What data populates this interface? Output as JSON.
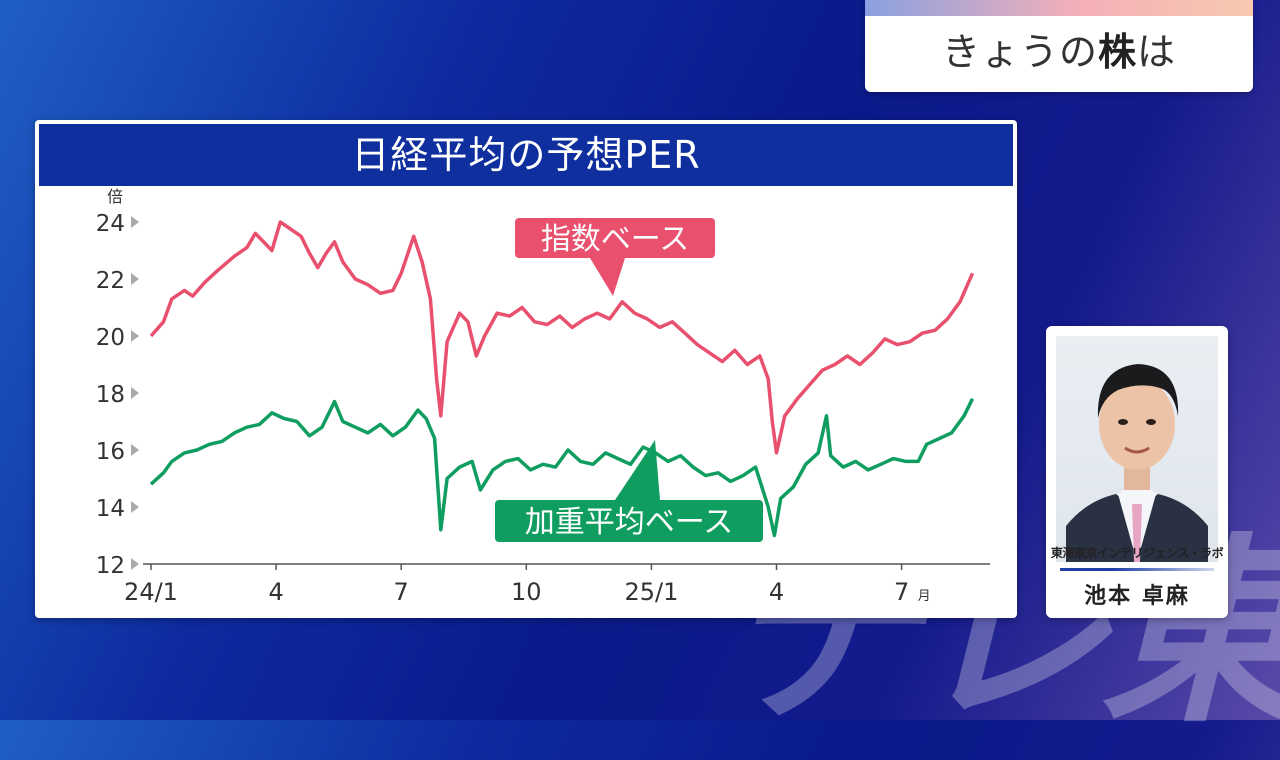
{
  "watermark": "テレ東",
  "corner_card": {
    "title_prefix": "きょうの",
    "title_bold": "株",
    "title_suffix": "は"
  },
  "chart_data": {
    "type": "line",
    "title": "日経平均の予想PER",
    "yunit": "倍",
    "ylim": [
      12,
      24
    ],
    "yticks": [
      "12",
      "14",
      "16",
      "18",
      "20",
      "22",
      "24"
    ],
    "xticks": [
      {
        "label": "24/1",
        "x": 0
      },
      {
        "label": "4",
        "x": 3
      },
      {
        "label": "7",
        "x": 6
      },
      {
        "label": "10",
        "x": 9
      },
      {
        "label": "25/1",
        "x": 12
      },
      {
        "label": "4",
        "x": 15
      },
      {
        "label": "7",
        "x": 18,
        "suffix": "月"
      }
    ],
    "xlim": [
      0,
      20
    ],
    "series": [
      {
        "name": "指数ベース",
        "color": "#e8506e",
        "points": [
          [
            0.0,
            20.0
          ],
          [
            0.3,
            20.5
          ],
          [
            0.5,
            21.3
          ],
          [
            0.8,
            21.6
          ],
          [
            1.0,
            21.4
          ],
          [
            1.3,
            21.9
          ],
          [
            1.6,
            22.3
          ],
          [
            2.0,
            22.8
          ],
          [
            2.3,
            23.1
          ],
          [
            2.5,
            23.6
          ],
          [
            2.7,
            23.3
          ],
          [
            2.9,
            23.0
          ],
          [
            3.1,
            24.0
          ],
          [
            3.3,
            23.8
          ],
          [
            3.6,
            23.5
          ],
          [
            3.8,
            22.9
          ],
          [
            4.0,
            22.4
          ],
          [
            4.2,
            22.9
          ],
          [
            4.4,
            23.3
          ],
          [
            4.6,
            22.6
          ],
          [
            4.9,
            22.0
          ],
          [
            5.2,
            21.8
          ],
          [
            5.5,
            21.5
          ],
          [
            5.8,
            21.6
          ],
          [
            6.0,
            22.2
          ],
          [
            6.3,
            23.5
          ],
          [
            6.5,
            22.6
          ],
          [
            6.7,
            21.3
          ],
          [
            6.85,
            18.5
          ],
          [
            6.95,
            17.2
          ],
          [
            7.1,
            19.8
          ],
          [
            7.4,
            20.8
          ],
          [
            7.6,
            20.5
          ],
          [
            7.8,
            19.3
          ],
          [
            8.0,
            20.0
          ],
          [
            8.3,
            20.8
          ],
          [
            8.6,
            20.7
          ],
          [
            8.9,
            21.0
          ],
          [
            9.2,
            20.5
          ],
          [
            9.5,
            20.4
          ],
          [
            9.8,
            20.7
          ],
          [
            10.1,
            20.3
          ],
          [
            10.4,
            20.6
          ],
          [
            10.7,
            20.8
          ],
          [
            11.0,
            20.6
          ],
          [
            11.3,
            21.2
          ],
          [
            11.6,
            20.8
          ],
          [
            11.9,
            20.6
          ],
          [
            12.2,
            20.3
          ],
          [
            12.5,
            20.5
          ],
          [
            12.8,
            20.1
          ],
          [
            13.1,
            19.7
          ],
          [
            13.4,
            19.4
          ],
          [
            13.7,
            19.1
          ],
          [
            14.0,
            19.5
          ],
          [
            14.3,
            19.0
          ],
          [
            14.6,
            19.3
          ],
          [
            14.8,
            18.5
          ],
          [
            14.9,
            17.0
          ],
          [
            15.0,
            15.9
          ],
          [
            15.2,
            17.2
          ],
          [
            15.5,
            17.8
          ],
          [
            15.8,
            18.3
          ],
          [
            16.1,
            18.8
          ],
          [
            16.4,
            19.0
          ],
          [
            16.7,
            19.3
          ],
          [
            17.0,
            19.0
          ],
          [
            17.3,
            19.4
          ],
          [
            17.6,
            19.9
          ],
          [
            17.9,
            19.7
          ],
          [
            18.2,
            19.8
          ],
          [
            18.5,
            20.1
          ],
          [
            18.8,
            20.2
          ],
          [
            19.1,
            20.6
          ],
          [
            19.4,
            21.2
          ],
          [
            19.7,
            22.2
          ]
        ]
      },
      {
        "name": "加重平均ベース",
        "color": "#0f9e60",
        "points": [
          [
            0.0,
            14.8
          ],
          [
            0.3,
            15.2
          ],
          [
            0.5,
            15.6
          ],
          [
            0.8,
            15.9
          ],
          [
            1.1,
            16.0
          ],
          [
            1.4,
            16.2
          ],
          [
            1.7,
            16.3
          ],
          [
            2.0,
            16.6
          ],
          [
            2.3,
            16.8
          ],
          [
            2.6,
            16.9
          ],
          [
            2.9,
            17.3
          ],
          [
            3.2,
            17.1
          ],
          [
            3.5,
            17.0
          ],
          [
            3.8,
            16.5
          ],
          [
            4.1,
            16.8
          ],
          [
            4.4,
            17.7
          ],
          [
            4.6,
            17.0
          ],
          [
            4.9,
            16.8
          ],
          [
            5.2,
            16.6
          ],
          [
            5.5,
            16.9
          ],
          [
            5.8,
            16.5
          ],
          [
            6.1,
            16.8
          ],
          [
            6.4,
            17.4
          ],
          [
            6.6,
            17.1
          ],
          [
            6.8,
            16.4
          ],
          [
            6.95,
            13.2
          ],
          [
            7.1,
            15.0
          ],
          [
            7.4,
            15.4
          ],
          [
            7.7,
            15.6
          ],
          [
            7.9,
            14.6
          ],
          [
            8.2,
            15.3
          ],
          [
            8.5,
            15.6
          ],
          [
            8.8,
            15.7
          ],
          [
            9.1,
            15.3
          ],
          [
            9.4,
            15.5
          ],
          [
            9.7,
            15.4
          ],
          [
            10.0,
            16.0
          ],
          [
            10.3,
            15.6
          ],
          [
            10.6,
            15.5
          ],
          [
            10.9,
            15.9
          ],
          [
            11.2,
            15.7
          ],
          [
            11.5,
            15.5
          ],
          [
            11.8,
            16.1
          ],
          [
            12.1,
            15.9
          ],
          [
            12.4,
            15.6
          ],
          [
            12.7,
            15.8
          ],
          [
            13.0,
            15.4
          ],
          [
            13.3,
            15.1
          ],
          [
            13.6,
            15.2
          ],
          [
            13.9,
            14.9
          ],
          [
            14.2,
            15.1
          ],
          [
            14.5,
            15.4
          ],
          [
            14.8,
            14.0
          ],
          [
            14.95,
            13.0
          ],
          [
            15.1,
            14.3
          ],
          [
            15.4,
            14.7
          ],
          [
            15.7,
            15.5
          ],
          [
            16.0,
            15.9
          ],
          [
            16.2,
            17.2
          ],
          [
            16.3,
            15.8
          ],
          [
            16.6,
            15.4
          ],
          [
            16.9,
            15.6
          ],
          [
            17.2,
            15.3
          ],
          [
            17.5,
            15.5
          ],
          [
            17.8,
            15.7
          ],
          [
            18.1,
            15.6
          ],
          [
            18.4,
            15.6
          ],
          [
            18.6,
            16.2
          ],
          [
            18.9,
            16.4
          ],
          [
            19.2,
            16.6
          ],
          [
            19.5,
            17.2
          ],
          [
            19.7,
            17.8
          ]
        ]
      }
    ],
    "grid": false,
    "legend": "inline labels"
  },
  "analyst": {
    "org": "東海東京インテリジェンス・ラボ",
    "name": "池本 卓麻"
  }
}
